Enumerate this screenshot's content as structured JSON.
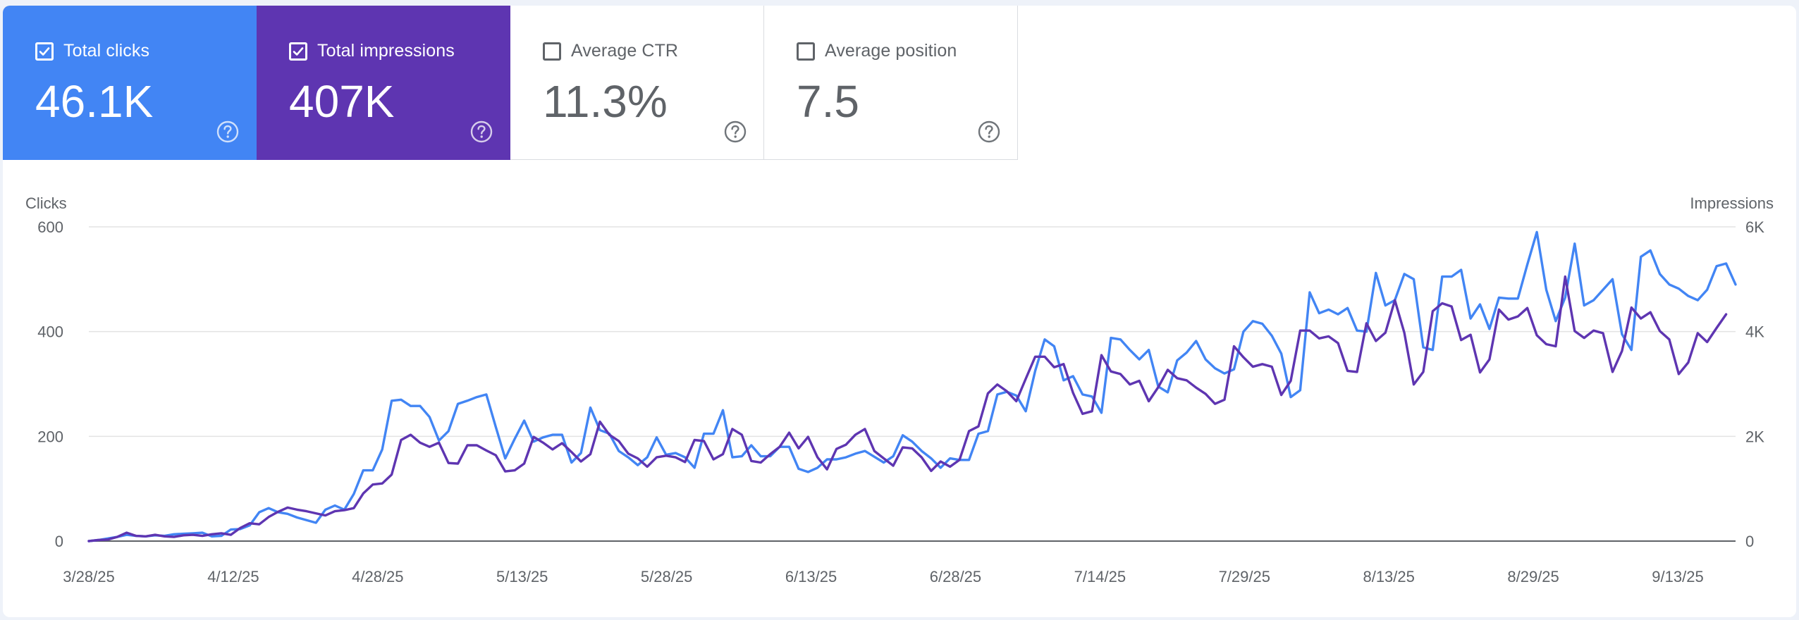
{
  "cards": [
    {
      "label": "Total clicks",
      "value": "46.1K",
      "checked": true,
      "color": "#4285f4"
    },
    {
      "label": "Total impressions",
      "value": "407K",
      "checked": true,
      "color": "#5e35b1"
    },
    {
      "label": "Average CTR",
      "value": "11.3%",
      "checked": false,
      "color": "#ffffff"
    },
    {
      "label": "Average position",
      "value": "7.5",
      "checked": false,
      "color": "#ffffff"
    }
  ],
  "chart_data": {
    "type": "line",
    "left_axis_label": "Clicks",
    "right_axis_label": "Impressions",
    "left_ticks": [
      "0",
      "200",
      "400",
      "600"
    ],
    "right_ticks": [
      "0",
      "2K",
      "4K",
      "6K"
    ],
    "x_tick_labels": [
      "3/28/25",
      "4/12/25",
      "4/28/25",
      "5/13/25",
      "5/28/25",
      "6/13/25",
      "6/28/25",
      "7/14/25",
      "7/29/25",
      "8/13/25",
      "8/29/25",
      "9/13/25"
    ],
    "ylim_left": [
      0,
      600
    ],
    "ylim_right": [
      0,
      6000
    ],
    "grid": true,
    "series": [
      {
        "name": "Total clicks",
        "axis": "left",
        "color": "#4285f4",
        "values": [
          0,
          2,
          5,
          8,
          12,
          10,
          9,
          11,
          10,
          13,
          14,
          15,
          16,
          9,
          10,
          22,
          23,
          30,
          55,
          63,
          55,
          52,
          45,
          40,
          35,
          60,
          68,
          60,
          90,
          135,
          135,
          175,
          268,
          270,
          258,
          258,
          237,
          192,
          210,
          262,
          268,
          275,
          280,
          218,
          158,
          195,
          230,
          190,
          198,
          203,
          203,
          150,
          168,
          255,
          212,
          205,
          172,
          160,
          145,
          160,
          198,
          165,
          168,
          160,
          140,
          205,
          205,
          250,
          160,
          162,
          183,
          162,
          162,
          180,
          180,
          138,
          132,
          140,
          156,
          156,
          160,
          167,
          172,
          161,
          150,
          162,
          202,
          190,
          172,
          158,
          140,
          158,
          155,
          155,
          205,
          210,
          280,
          285,
          278,
          248,
          325,
          385,
          372,
          307,
          315,
          280,
          276,
          245,
          388,
          385,
          365,
          347,
          365,
          295,
          284,
          345,
          360,
          382,
          347,
          330,
          320,
          328,
          400,
          420,
          415,
          392,
          358,
          275,
          288,
          475,
          435,
          442,
          433,
          445,
          402,
          400,
          512,
          450,
          460,
          510,
          500,
          370,
          365,
          505,
          505,
          518,
          425,
          452,
          405,
          465,
          463,
          463,
          528,
          590,
          480,
          420,
          465,
          568,
          450,
          460,
          480,
          500,
          395,
          365,
          543,
          555,
          510,
          490,
          482,
          468,
          460,
          480,
          525,
          530,
          490
        ]
      },
      {
        "name": "Total impressions",
        "axis": "right",
        "color": "#5e35b1",
        "values": [
          0,
          20,
          30,
          80,
          160,
          100,
          90,
          120,
          90,
          80,
          110,
          120,
          100,
          130,
          150,
          120,
          250,
          340,
          320,
          460,
          560,
          640,
          600,
          570,
          530,
          490,
          570,
          590,
          630,
          910,
          1080,
          1100,
          1270,
          1930,
          2030,
          1880,
          1800,
          1880,
          1490,
          1480,
          1830,
          1830,
          1730,
          1640,
          1330,
          1350,
          1480,
          1990,
          1880,
          1750,
          1870,
          1700,
          1520,
          1660,
          2280,
          2030,
          1910,
          1670,
          1580,
          1420,
          1600,
          1630,
          1600,
          1510,
          1930,
          1910,
          1560,
          1660,
          2140,
          2030,
          1530,
          1500,
          1660,
          1800,
          2070,
          1770,
          1990,
          1600,
          1370,
          1760,
          1840,
          2030,
          2140,
          1720,
          1580,
          1440,
          1790,
          1770,
          1600,
          1340,
          1520,
          1420,
          1550,
          2100,
          2190,
          2820,
          2990,
          2860,
          2670,
          3100,
          3520,
          3520,
          3320,
          3380,
          2830,
          2430,
          2480,
          3550,
          3240,
          3190,
          2990,
          3060,
          2670,
          2940,
          3270,
          3110,
          3070,
          2930,
          2810,
          2620,
          2700,
          3720,
          3510,
          3330,
          3380,
          3330,
          2790,
          3060,
          4020,
          4020,
          3870,
          3910,
          3780,
          3250,
          3230,
          4160,
          3820,
          3980,
          4600,
          3980,
          2990,
          3230,
          4390,
          4540,
          4480,
          3840,
          3940,
          3220,
          3470,
          4420,
          4230,
          4290,
          4450,
          3930,
          3760,
          3720,
          5050,
          4010,
          3880,
          4020,
          3970,
          3230,
          3630,
          4460,
          4250,
          4370,
          4010,
          3850,
          3190,
          3410,
          3970,
          3800,
          4070,
          4330
        ]
      }
    ]
  }
}
